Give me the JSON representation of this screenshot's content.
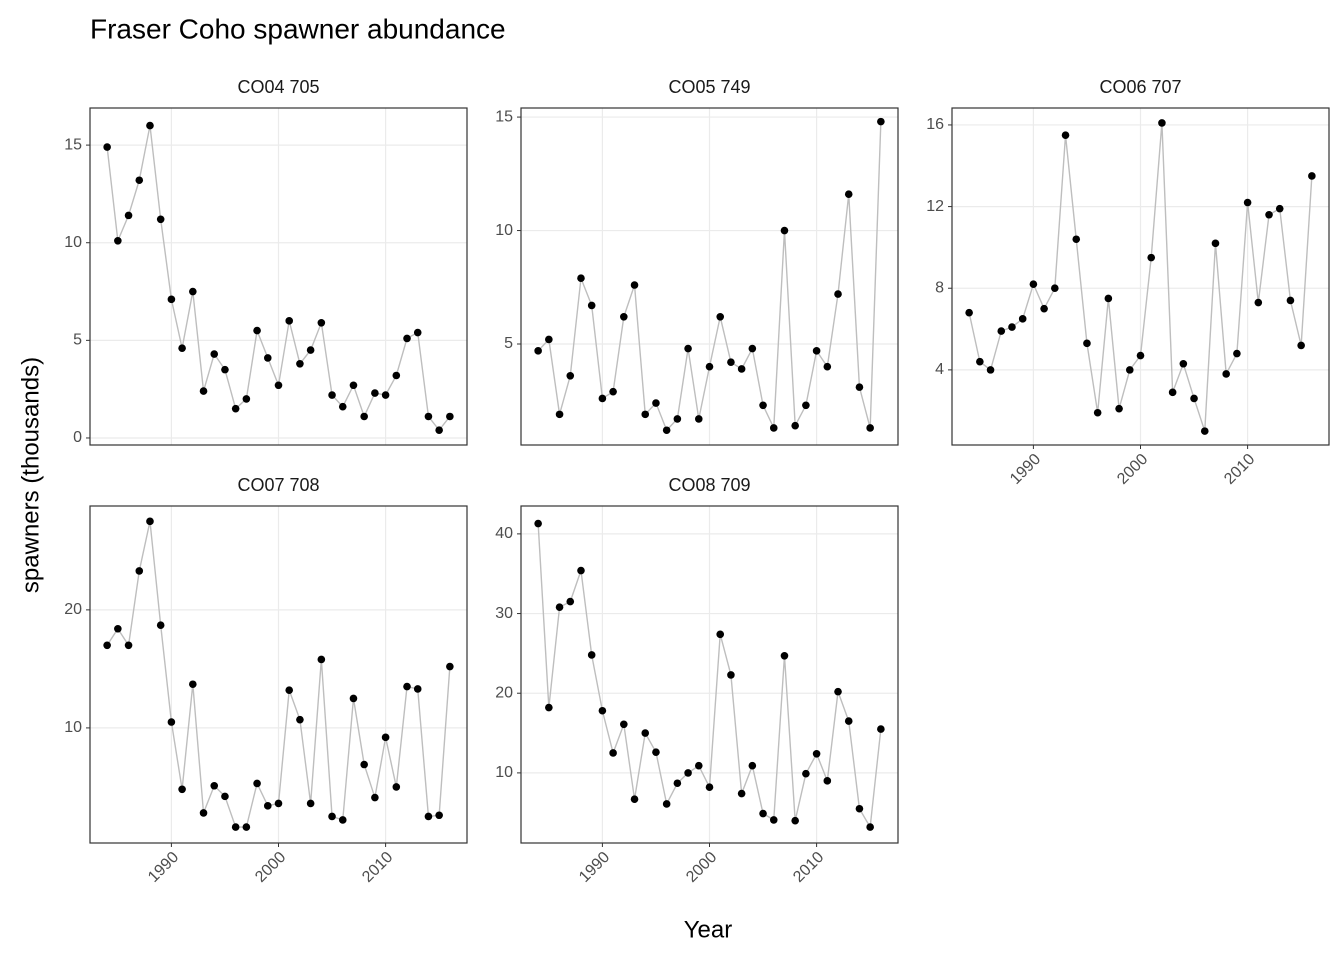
{
  "title": "Fraser Coho spawner abundance",
  "x_label": "Year",
  "y_label": "spawners (thousands)",
  "chart_data": [
    {
      "type": "line",
      "title": "CO04 705",
      "color": "#000000",
      "line_color": "#bebebe",
      "grid": true,
      "x": [
        1984,
        1985,
        1986,
        1987,
        1988,
        1989,
        1990,
        1991,
        1992,
        1993,
        1994,
        1995,
        1996,
        1997,
        1998,
        1999,
        2000,
        2001,
        2002,
        2003,
        2004,
        2005,
        2006,
        2007,
        2008,
        2009,
        2010,
        2011,
        2012,
        2013,
        2014,
        2015,
        2016
      ],
      "values": [
        14.9,
        10.1,
        11.4,
        13.2,
        16.0,
        11.2,
        7.1,
        4.6,
        7.5,
        2.4,
        4.3,
        3.5,
        1.5,
        2.0,
        5.5,
        4.1,
        2.7,
        6.0,
        3.8,
        4.5,
        5.9,
        2.2,
        1.6,
        2.7,
        1.1,
        2.3,
        2.2,
        3.2,
        5.1,
        5.4,
        1.1,
        0.4,
        1.1
      ],
      "xlim": [
        1982.4,
        2017.6
      ],
      "ylim": [
        -0.36,
        16.9
      ],
      "xticks": [
        1990,
        2000,
        2010
      ],
      "yticks": [
        0,
        5,
        10,
        15
      ]
    },
    {
      "type": "line",
      "title": "CO05 749",
      "color": "#000000",
      "line_color": "#bebebe",
      "grid": true,
      "x": [
        1984,
        1985,
        1986,
        1987,
        1988,
        1989,
        1990,
        1991,
        1992,
        1993,
        1994,
        1995,
        1996,
        1997,
        1998,
        1999,
        2000,
        2001,
        2002,
        2003,
        2004,
        2005,
        2006,
        2007,
        2008,
        2009,
        2010,
        2011,
        2012,
        2013,
        2014,
        2015,
        2016
      ],
      "values": [
        4.7,
        5.2,
        1.9,
        3.6,
        7.9,
        6.7,
        2.6,
        2.9,
        6.2,
        7.6,
        1.9,
        2.4,
        1.2,
        1.7,
        4.8,
        1.7,
        4.0,
        6.2,
        4.2,
        3.9,
        4.8,
        2.3,
        1.3,
        10.0,
        1.4,
        2.3,
        4.7,
        4.0,
        7.2,
        11.6,
        3.1,
        1.3,
        14.8
      ],
      "xlim": [
        1982.4,
        2017.6
      ],
      "ylim": [
        0.55,
        15.4
      ],
      "xticks": [
        1990,
        2000,
        2010
      ],
      "yticks": [
        5,
        10,
        15
      ]
    },
    {
      "type": "line",
      "title": "CO06 707",
      "color": "#000000",
      "line_color": "#bebebe",
      "grid": true,
      "x": [
        1984,
        1985,
        1986,
        1987,
        1988,
        1989,
        1990,
        1991,
        1992,
        1993,
        1994,
        1995,
        1996,
        1997,
        1998,
        1999,
        2000,
        2001,
        2002,
        2003,
        2004,
        2005,
        2006,
        2007,
        2008,
        2009,
        2010,
        2011,
        2012,
        2013,
        2014,
        2015,
        2016
      ],
      "values": [
        6.8,
        4.4,
        4.0,
        5.9,
        6.1,
        6.5,
        8.2,
        7.0,
        8.0,
        15.5,
        10.4,
        5.3,
        1.9,
        7.5,
        2.1,
        4.0,
        4.7,
        9.5,
        16.1,
        2.9,
        4.3,
        2.6,
        1.0,
        10.2,
        3.8,
        4.8,
        12.2,
        7.3,
        11.6,
        11.9,
        7.4,
        5.2,
        13.5
      ],
      "xlim": [
        1982.4,
        2017.6
      ],
      "ylim": [
        0.32,
        16.83
      ],
      "xticks": [
        1990,
        2000,
        2010
      ],
      "yticks": [
        4,
        8,
        12,
        16
      ]
    },
    {
      "type": "line",
      "title": "CO07 708",
      "color": "#000000",
      "line_color": "#bebebe",
      "grid": true,
      "x": [
        1984,
        1985,
        1986,
        1987,
        1988,
        1989,
        1990,
        1991,
        1992,
        1993,
        1994,
        1995,
        1996,
        1997,
        1998,
        1999,
        2000,
        2001,
        2002,
        2003,
        2004,
        2005,
        2006,
        2007,
        2008,
        2009,
        2010,
        2011,
        2012,
        2013,
        2014,
        2015,
        2016
      ],
      "values": [
        17.0,
        18.4,
        17.0,
        23.3,
        27.5,
        18.7,
        10.5,
        4.8,
        13.7,
        2.8,
        5.1,
        4.2,
        1.6,
        1.6,
        5.3,
        3.4,
        3.6,
        13.2,
        10.7,
        3.6,
        15.8,
        2.5,
        2.2,
        12.5,
        6.9,
        4.1,
        9.2,
        5.0,
        13.5,
        13.3,
        2.5,
        2.6,
        15.2
      ],
      "xlim": [
        1982.4,
        2017.6
      ],
      "ylim": [
        0.25,
        28.8
      ],
      "xticks": [
        1990,
        2000,
        2010
      ],
      "yticks": [
        10,
        20
      ]
    },
    {
      "type": "line",
      "title": "CO08 709",
      "color": "#000000",
      "line_color": "#bebebe",
      "grid": true,
      "x": [
        1984,
        1985,
        1986,
        1987,
        1988,
        1989,
        1990,
        1991,
        1992,
        1993,
        1994,
        1995,
        1996,
        1997,
        1998,
        1999,
        2000,
        2001,
        2002,
        2003,
        2004,
        2005,
        2006,
        2007,
        2008,
        2009,
        2010,
        2011,
        2012,
        2013,
        2014,
        2015,
        2016
      ],
      "values": [
        41.3,
        18.2,
        30.8,
        31.5,
        35.4,
        24.8,
        17.8,
        12.5,
        16.1,
        6.7,
        15.0,
        12.6,
        6.1,
        8.7,
        10.0,
        10.9,
        8.2,
        27.4,
        22.3,
        7.4,
        10.9,
        4.9,
        4.1,
        24.7,
        4.0,
        9.9,
        12.4,
        9.0,
        20.2,
        16.5,
        5.5,
        3.2,
        15.5
      ],
      "xlim": [
        1982.4,
        2017.6
      ],
      "ylim": [
        1.2,
        43.5
      ],
      "xticks": [
        1990,
        2000,
        2010
      ],
      "yticks": [
        10,
        20,
        30,
        40
      ]
    }
  ]
}
